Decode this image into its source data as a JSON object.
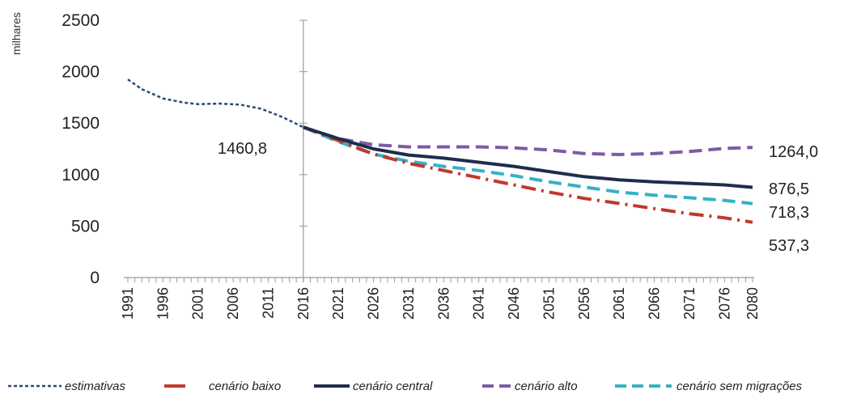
{
  "chart_data": {
    "type": "line",
    "ylabel": "milhares",
    "ylim": [
      0,
      2500
    ],
    "yticks": [
      0,
      500,
      1000,
      1500,
      2000,
      2500
    ],
    "xlim": [
      1991,
      2080
    ],
    "xticks": [
      "1991",
      "1996",
      "2001",
      "2006",
      "2011",
      "2016",
      "2021",
      "2026",
      "2031",
      "2036",
      "2041",
      "2046",
      "2051",
      "2056",
      "2061",
      "2066",
      "2071",
      "2076",
      "2080"
    ],
    "grid": false,
    "legend_position": "bottom",
    "base_year": 2016,
    "annotations": [
      {
        "text": "1460,8",
        "x": 2016,
        "y": 1460.8
      }
    ],
    "series": [
      {
        "name": "estimativas",
        "color": "#2e4a6e",
        "style": "dotted",
        "end_label": "",
        "points": [
          [
            1991,
            1925
          ],
          [
            1993,
            1830
          ],
          [
            1996,
            1740
          ],
          [
            1999,
            1700
          ],
          [
            2001,
            1685
          ],
          [
            2004,
            1690
          ],
          [
            2007,
            1680
          ],
          [
            2010,
            1640
          ],
          [
            2013,
            1560
          ],
          [
            2016,
            1460.8
          ]
        ]
      },
      {
        "name": "cenário baixo",
        "color": "#c0392b",
        "style": "dashdot",
        "end_label": "537,3",
        "points": [
          [
            2016,
            1460.8
          ],
          [
            2021,
            1330
          ],
          [
            2026,
            1200
          ],
          [
            2031,
            1110
          ],
          [
            2036,
            1040
          ],
          [
            2041,
            970
          ],
          [
            2046,
            900
          ],
          [
            2051,
            830
          ],
          [
            2056,
            770
          ],
          [
            2061,
            720
          ],
          [
            2066,
            670
          ],
          [
            2071,
            620
          ],
          [
            2076,
            580
          ],
          [
            2080,
            537.3
          ]
        ]
      },
      {
        "name": "cenário central",
        "color": "#1f2d4d",
        "style": "solid",
        "end_label": "876,5",
        "points": [
          [
            2016,
            1460.8
          ],
          [
            2021,
            1350
          ],
          [
            2026,
            1250
          ],
          [
            2031,
            1190
          ],
          [
            2036,
            1160
          ],
          [
            2041,
            1120
          ],
          [
            2046,
            1080
          ],
          [
            2051,
            1030
          ],
          [
            2056,
            980
          ],
          [
            2061,
            950
          ],
          [
            2066,
            930
          ],
          [
            2071,
            915
          ],
          [
            2076,
            900
          ],
          [
            2080,
            876.5
          ]
        ]
      },
      {
        "name": "cenário alto",
        "color": "#7d5ba6",
        "style": "dashed",
        "end_label": "1264,0",
        "points": [
          [
            2016,
            1460.8
          ],
          [
            2021,
            1350
          ],
          [
            2026,
            1290
          ],
          [
            2031,
            1270
          ],
          [
            2036,
            1270
          ],
          [
            2041,
            1270
          ],
          [
            2046,
            1260
          ],
          [
            2051,
            1240
          ],
          [
            2056,
            1205
          ],
          [
            2061,
            1195
          ],
          [
            2066,
            1205
          ],
          [
            2071,
            1225
          ],
          [
            2076,
            1255
          ],
          [
            2080,
            1264.0
          ]
        ]
      },
      {
        "name": "cenário sem migrações",
        "color": "#36b1c7",
        "style": "dashed",
        "end_label": "718,3",
        "points": [
          [
            2016,
            1460.8
          ],
          [
            2021,
            1320
          ],
          [
            2026,
            1200
          ],
          [
            2031,
            1130
          ],
          [
            2036,
            1080
          ],
          [
            2041,
            1040
          ],
          [
            2046,
            990
          ],
          [
            2051,
            930
          ],
          [
            2056,
            880
          ],
          [
            2061,
            830
          ],
          [
            2066,
            800
          ],
          [
            2071,
            775
          ],
          [
            2076,
            750
          ],
          [
            2080,
            718.3
          ]
        ]
      }
    ]
  }
}
